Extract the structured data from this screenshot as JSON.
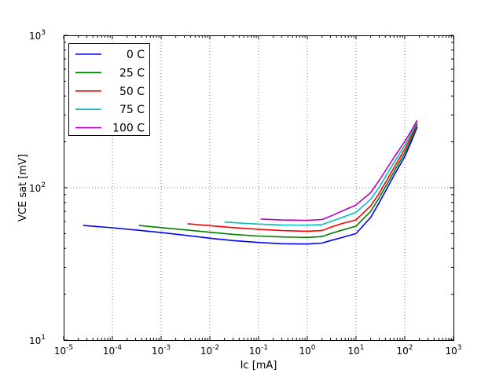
{
  "figure": {
    "background": "#ffffff"
  },
  "chart_data": {
    "type": "line",
    "title": "",
    "xlabel": "Ic [mA]",
    "ylabel": "VCE sat [mV]",
    "xscale": "log",
    "yscale": "log",
    "xlim": [
      1e-05,
      1000
    ],
    "ylim": [
      10,
      1000
    ],
    "x_tick_exponents": [
      -5,
      -4,
      -3,
      -2,
      -1,
      0,
      1,
      2,
      3
    ],
    "y_tick_exponents": [
      1,
      2,
      3
    ],
    "grid": "dotted",
    "grid_color": "#777777",
    "axis_color": "#000000",
    "legend_position": "upper-left",
    "series": [
      {
        "name": "0 C",
        "color": "#0000ff",
        "points": [
          [
            2.5e-05,
            56.5
          ],
          [
            0.0001,
            54.6
          ],
          [
            0.0003,
            52.8
          ],
          [
            0.001,
            50.8
          ],
          [
            0.003,
            48.8
          ],
          [
            0.01,
            46.6
          ],
          [
            0.03,
            45.0
          ],
          [
            0.1,
            43.7
          ],
          [
            0.3,
            42.9
          ],
          [
            1,
            42.7
          ],
          [
            2,
            43.3
          ],
          [
            3,
            45
          ],
          [
            5,
            47
          ],
          [
            10,
            50
          ],
          [
            20,
            64
          ],
          [
            30,
            80
          ],
          [
            60,
            120
          ],
          [
            100,
            160
          ],
          [
            140,
            205
          ],
          [
            180,
            250
          ]
        ]
      },
      {
        "name": "25 C",
        "color": "#007f00",
        "points": [
          [
            0.00035,
            56.5
          ],
          [
            0.001,
            54.7
          ],
          [
            0.003,
            52.9
          ],
          [
            0.01,
            51.0
          ],
          [
            0.03,
            49.4
          ],
          [
            0.1,
            48.2
          ],
          [
            0.3,
            47.5
          ],
          [
            1,
            47.2
          ],
          [
            2,
            47.8
          ],
          [
            3,
            50
          ],
          [
            5,
            52.5
          ],
          [
            10,
            56
          ],
          [
            20,
            70
          ],
          [
            30,
            86
          ],
          [
            60,
            127
          ],
          [
            100,
            169
          ],
          [
            140,
            213
          ],
          [
            180,
            258
          ]
        ]
      },
      {
        "name": "50 C",
        "color": "#ff0000",
        "points": [
          [
            0.0035,
            58.0
          ],
          [
            0.01,
            56.4
          ],
          [
            0.03,
            54.7
          ],
          [
            0.1,
            53.4
          ],
          [
            0.3,
            52.3
          ],
          [
            1,
            51.8
          ],
          [
            2,
            52.3
          ],
          [
            3,
            55
          ],
          [
            5,
            58
          ],
          [
            10,
            61.5
          ],
          [
            20,
            76
          ],
          [
            30,
            92
          ],
          [
            60,
            135
          ],
          [
            100,
            179
          ],
          [
            140,
            222
          ],
          [
            180,
            264
          ]
        ]
      },
      {
        "name": "75 C",
        "color": "#00bfbf",
        "points": [
          [
            0.02,
            59.5
          ],
          [
            0.05,
            58.4
          ],
          [
            0.1,
            57.7
          ],
          [
            0.3,
            57.0
          ],
          [
            1,
            56.8
          ],
          [
            2,
            57.3
          ],
          [
            3,
            60
          ],
          [
            5,
            63.5
          ],
          [
            10,
            69
          ],
          [
            20,
            84
          ],
          [
            30,
            101
          ],
          [
            60,
            146
          ],
          [
            100,
            190
          ],
          [
            140,
            231
          ],
          [
            180,
            270
          ]
        ]
      },
      {
        "name": "100 C",
        "color": "#bf00bf",
        "points": [
          [
            0.11,
            62.3
          ],
          [
            0.3,
            61.4
          ],
          [
            1,
            61.0
          ],
          [
            2,
            61.8
          ],
          [
            3,
            65
          ],
          [
            5,
            70
          ],
          [
            10,
            77
          ],
          [
            20,
            93
          ],
          [
            30,
            112
          ],
          [
            60,
            158
          ],
          [
            100,
            201
          ],
          [
            140,
            240
          ],
          [
            180,
            277
          ]
        ]
      }
    ]
  }
}
